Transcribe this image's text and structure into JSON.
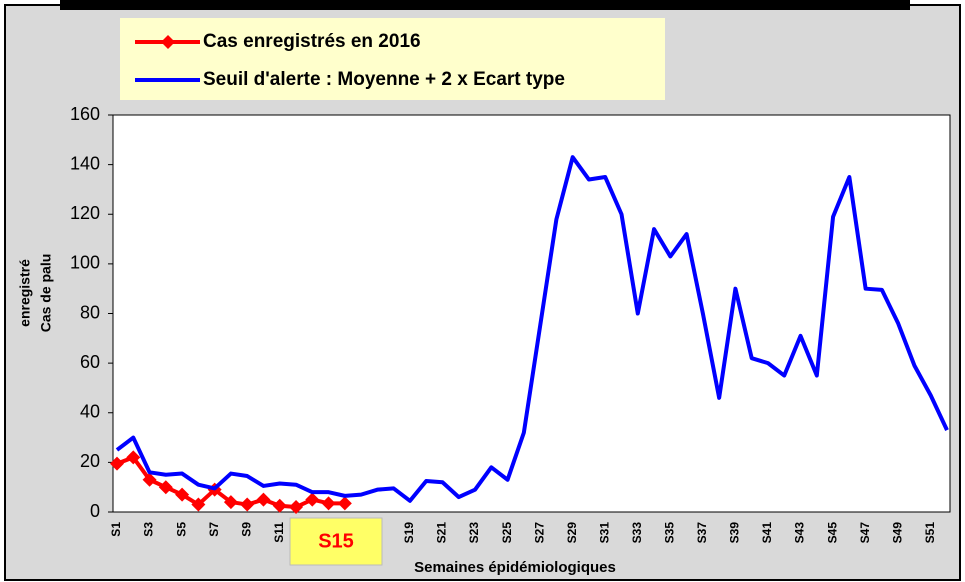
{
  "chart_data": {
    "type": "line",
    "ylabel": [
      "Cas de palu",
      "enregistré"
    ],
    "xlabel": "Semaines épidémiologiques",
    "annotation": "S15",
    "categories": [
      "S1",
      null,
      "S3",
      null,
      "S5",
      null,
      "S7",
      null,
      "S9",
      null,
      "S11",
      null,
      null,
      null,
      null,
      null,
      null,
      null,
      "S19",
      null,
      "S21",
      null,
      "S23",
      null,
      "S25",
      null,
      "S27",
      null,
      "S29",
      null,
      "S31",
      null,
      "S33",
      null,
      "S35",
      null,
      "S37",
      null,
      "S39",
      null,
      "S41",
      null,
      "S43",
      null,
      "S45",
      null,
      "S47",
      null,
      "S49",
      null,
      "S51",
      null
    ],
    "series": [
      {
        "name": "Cas enregistrés en 2016",
        "color": "#ff0000",
        "marker": "diamond",
        "values": [
          19.5,
          22,
          13,
          10,
          7,
          3,
          9,
          4,
          3,
          5,
          2.5,
          2,
          5,
          3.5,
          3.5,
          null,
          null,
          null,
          null,
          null,
          null,
          null,
          null,
          null,
          null,
          null,
          null,
          null,
          null,
          null,
          null,
          null,
          null,
          null,
          null,
          null,
          null,
          null,
          null,
          null,
          null,
          null,
          null,
          null,
          null,
          null,
          null,
          null,
          null,
          null,
          null,
          null
        ]
      },
      {
        "name": "Seuil d'alerte : Moyenne + 2 x Ecart type",
        "color": "#0000ff",
        "values": [
          25,
          30,
          16,
          15,
          15.5,
          11,
          9.5,
          15.5,
          14.5,
          10.5,
          11.5,
          11,
          8,
          8,
          6.5,
          7,
          9,
          9.5,
          4.5,
          12.5,
          12,
          6,
          9,
          18,
          13,
          32,
          75,
          118,
          143,
          134,
          135,
          120,
          80,
          114,
          103,
          112,
          80,
          46,
          90,
          62,
          60,
          55,
          71,
          55,
          119,
          135,
          90,
          89.5,
          76,
          59,
          47,
          33
        ]
      }
    ],
    "ylim": [
      0,
      160
    ],
    "yticks": [
      0,
      20,
      40,
      60,
      80,
      100,
      120,
      140,
      160
    ],
    "grid": false
  }
}
